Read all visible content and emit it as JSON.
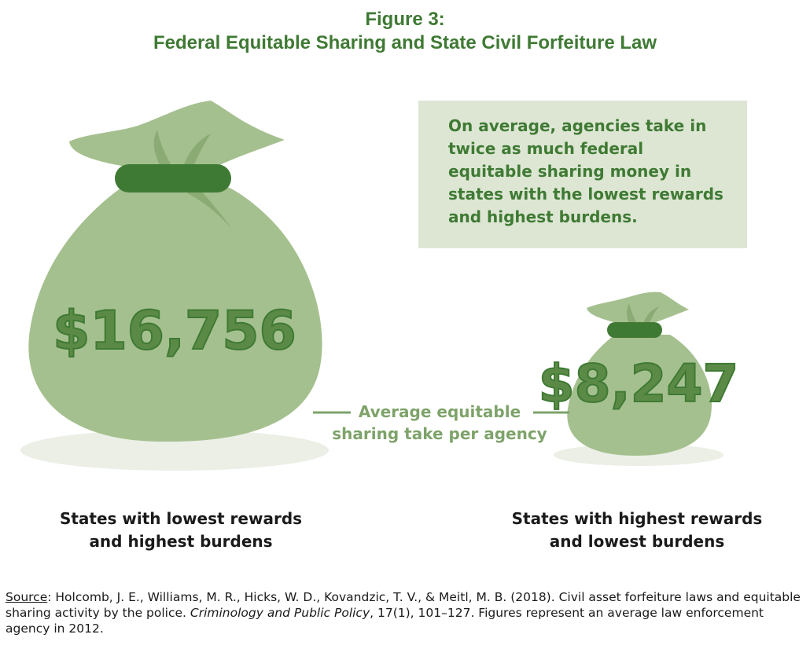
{
  "title": {
    "line1": "Figure 3:",
    "line2": "Federal Equitable Sharing and State Civil Forfeiture Law"
  },
  "callout": "On average, agencies take in twice as much federal equitable sharing money in states with the lowest rewards and highest burdens.",
  "connector_label": {
    "line1": "Average equitable",
    "line2": "sharing take per agency"
  },
  "colors": {
    "title": "#3f7a34",
    "bag": "#a5c08f",
    "tie": "#3f7a34",
    "amount": "#5b8a47",
    "callout_bg": "#dde6d3",
    "shadow": "#ebefe6"
  },
  "chart_data": {
    "type": "bar",
    "title": "Federal Equitable Sharing and State Civil Forfeiture Law",
    "categories": [
      "States with lowest rewards and highest burdens",
      "States with highest rewards and lowest burdens"
    ],
    "values": [
      16756,
      8247
    ],
    "value_labels": [
      "$16,756",
      "$8,247"
    ],
    "category_lines": [
      [
        "States with lowest rewards",
        "and highest burdens"
      ],
      [
        "States with highest rewards",
        "and lowest burdens"
      ]
    ],
    "ylabel": "Average equitable sharing take per agency",
    "unit": "USD"
  },
  "source": {
    "label": "Source",
    "part1": ": Holcomb, J. E., Williams, M. R., Hicks, W. D., Kovandzic, T. V., & Meitl, M. B. (2018). Civil asset forfeiture laws and equitable sharing activity by the police. ",
    "journal": "Criminology and Public Policy",
    "part2": ", 17(1), 101–127. Figures represent an average law enforcement agency in 2012."
  }
}
